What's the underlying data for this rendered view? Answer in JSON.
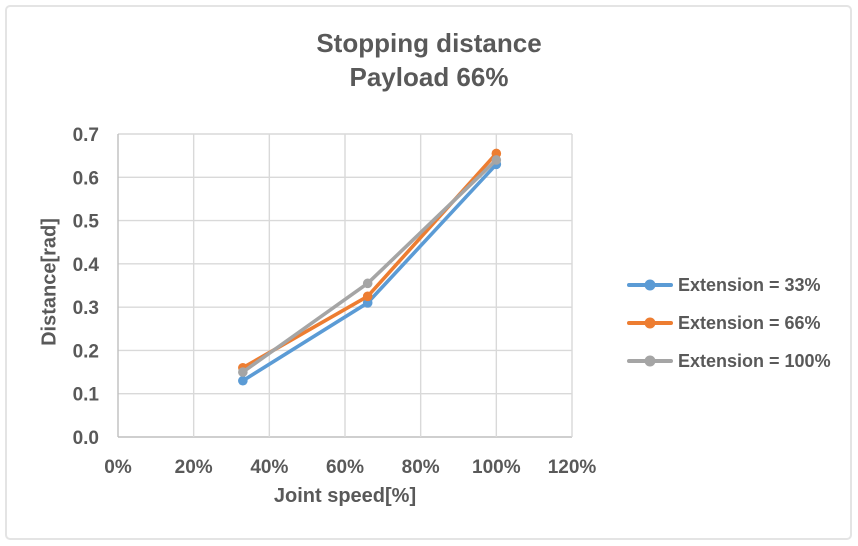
{
  "chart_data": {
    "type": "line",
    "title": "Stopping distance",
    "subtitle": "Payload 66%",
    "xlabel": "Joint speed[%]",
    "ylabel": "Distance[rad]",
    "xlim": [
      0,
      120
    ],
    "ylim": [
      0,
      0.7
    ],
    "xticks": [
      "0%",
      "20%",
      "40%",
      "60%",
      "80%",
      "100%",
      "120%"
    ],
    "xtick_values": [
      0,
      20,
      40,
      60,
      80,
      100,
      120
    ],
    "yticks": [
      "0.0",
      "0.1",
      "0.2",
      "0.3",
      "0.4",
      "0.5",
      "0.6",
      "0.7"
    ],
    "ytick_values": [
      0,
      0.1,
      0.2,
      0.3,
      0.4,
      0.5,
      0.6,
      0.7
    ],
    "grid": true,
    "legend_position": "right",
    "marker": "circle",
    "x": [
      33,
      66,
      100
    ],
    "series": [
      {
        "name": "Extension = 33%",
        "color": "#5B9BD5",
        "values": [
          0.13,
          0.31,
          0.63
        ]
      },
      {
        "name": "Extension = 66%",
        "color": "#ED7D31",
        "values": [
          0.16,
          0.325,
          0.655
        ]
      },
      {
        "name": "Extension = 100%",
        "color": "#A5A5A5",
        "values": [
          0.15,
          0.355,
          0.64
        ]
      }
    ]
  },
  "colors": {
    "text": "#595959",
    "gridline": "#D9D9D9",
    "axis_line": "#BFBFBF",
    "frame_border": "#E4E4E4",
    "background": "#FFFFFF"
  }
}
